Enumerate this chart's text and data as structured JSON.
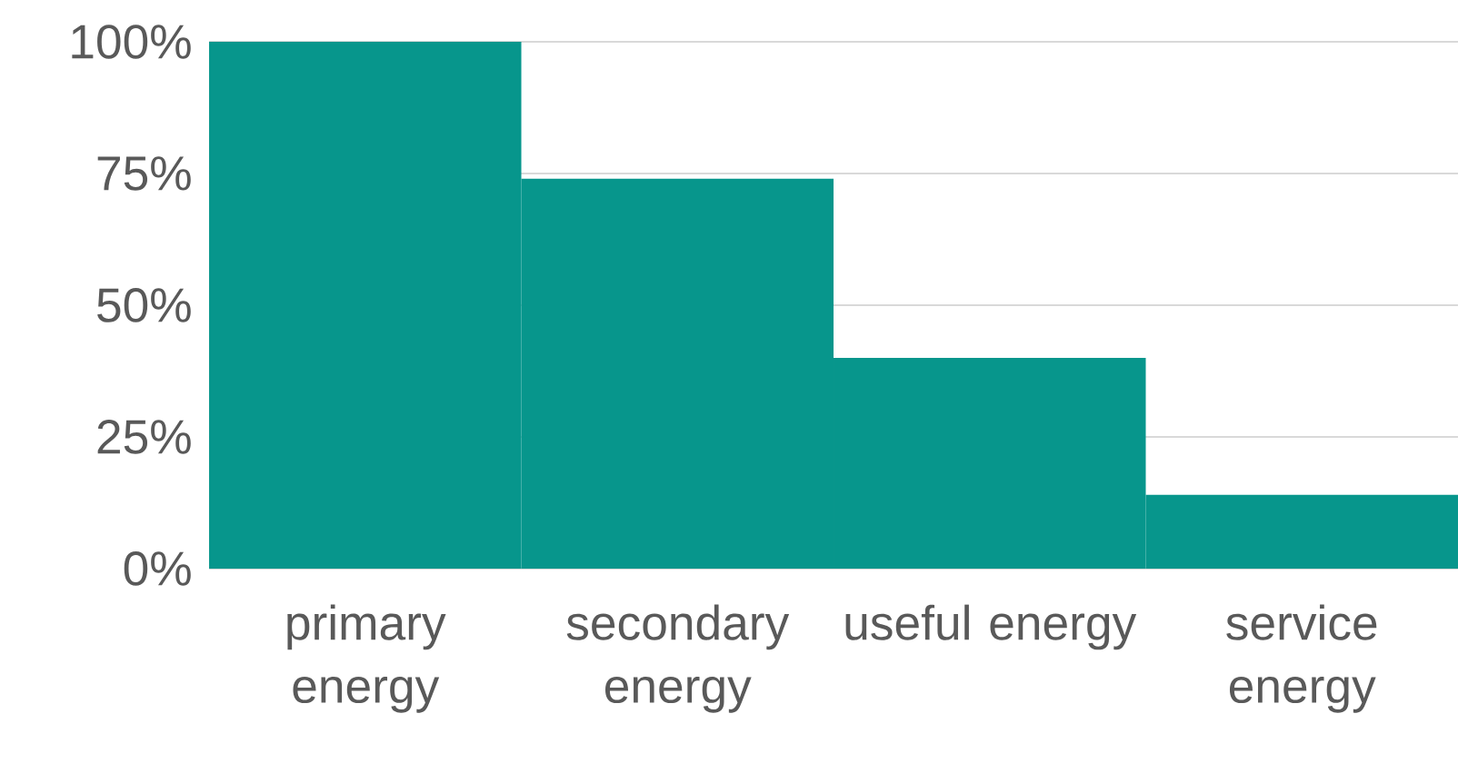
{
  "chart_data": {
    "type": "bar",
    "categories": [
      "primary energy",
      "secondary energy",
      "useful energy",
      "service energy"
    ],
    "values": [
      100,
      74,
      40,
      14
    ],
    "color": "#07968c",
    "ylim": [
      0,
      100
    ],
    "yticks": [
      {
        "value": 0,
        "label": "0%"
      },
      {
        "value": 25,
        "label": "25%"
      },
      {
        "value": 50,
        "label": "50%"
      },
      {
        "value": 75,
        "label": "75%"
      },
      {
        "value": 100,
        "label": "100%"
      }
    ],
    "grid": "y"
  }
}
